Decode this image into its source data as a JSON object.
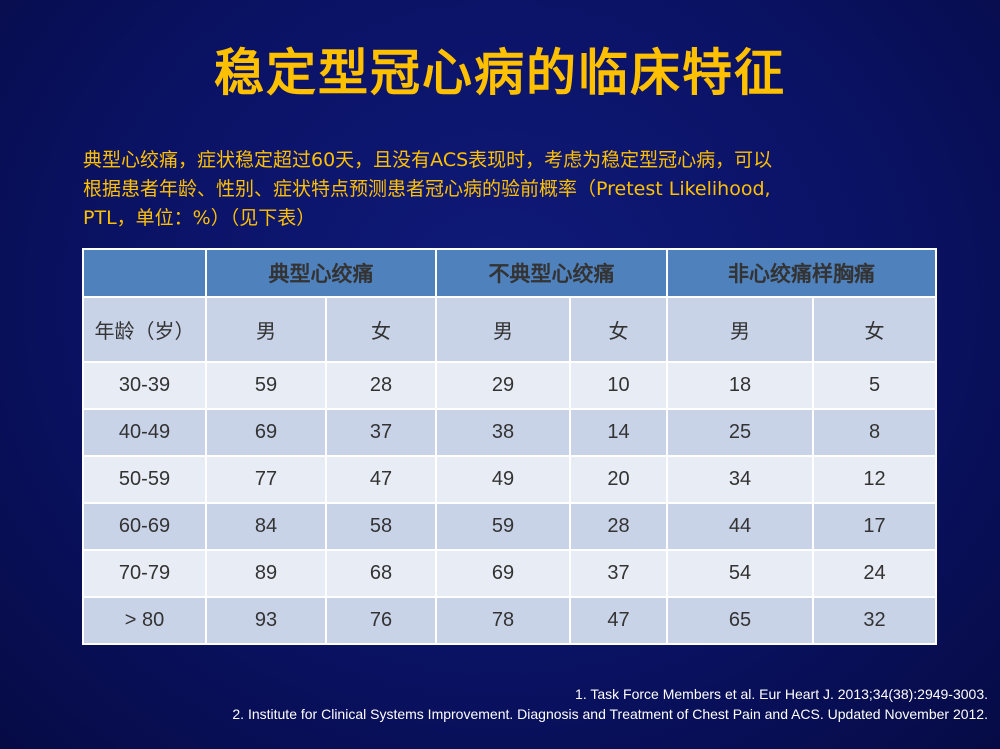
{
  "title": "稳定型冠心病的临床特征",
  "intro": {
    "line1": "典型心绞痛，症状稳定超过60天，且没有ACS表现时，考虑为稳定型冠心病，可以",
    "line2": "根据患者年龄、性别、症状特点预测患者冠心病的验前概率（Pretest Likelihood,",
    "line3": "PTL，单位：%）（见下表）"
  },
  "table": {
    "groups": [
      "典型心绞痛",
      "不典型心绞痛",
      "非心绞痛样胸痛"
    ],
    "age_header": "年龄（岁）",
    "sub": [
      "男",
      "女",
      "男",
      "女",
      "男",
      "女"
    ],
    "rows": [
      {
        "age": "30-39",
        "values": [
          "59",
          "28",
          "29",
          "10",
          "18",
          "5"
        ]
      },
      {
        "age": "40-49",
        "values": [
          "69",
          "37",
          "38",
          "14",
          "25",
          "8"
        ]
      },
      {
        "age": "50-59",
        "values": [
          "77",
          "47",
          "49",
          "20",
          "34",
          "12"
        ]
      },
      {
        "age": "60-69",
        "values": [
          "84",
          "58",
          "59",
          "28",
          "44",
          "17"
        ]
      },
      {
        "age": "70-79",
        "values": [
          "89",
          "68",
          "69",
          "37",
          "54",
          "24"
        ]
      },
      {
        "age": "> 80",
        "values": [
          "93",
          "76",
          "78",
          "47",
          "65",
          "32"
        ]
      }
    ]
  },
  "references": [
    "1.  Task Force Members et al. Eur Heart J. 2013;34(38):2949-3003.",
    "2.  Institute for Clinical Systems Improvement. Diagnosis and Treatment of Chest Pain and ACS. Updated November 2012."
  ],
  "colors": {
    "background": "#0a1264",
    "title": "#ffc000",
    "header": "#4f81bd",
    "row_light": "#e8ecf5",
    "row_dark": "#c9d3e8"
  }
}
